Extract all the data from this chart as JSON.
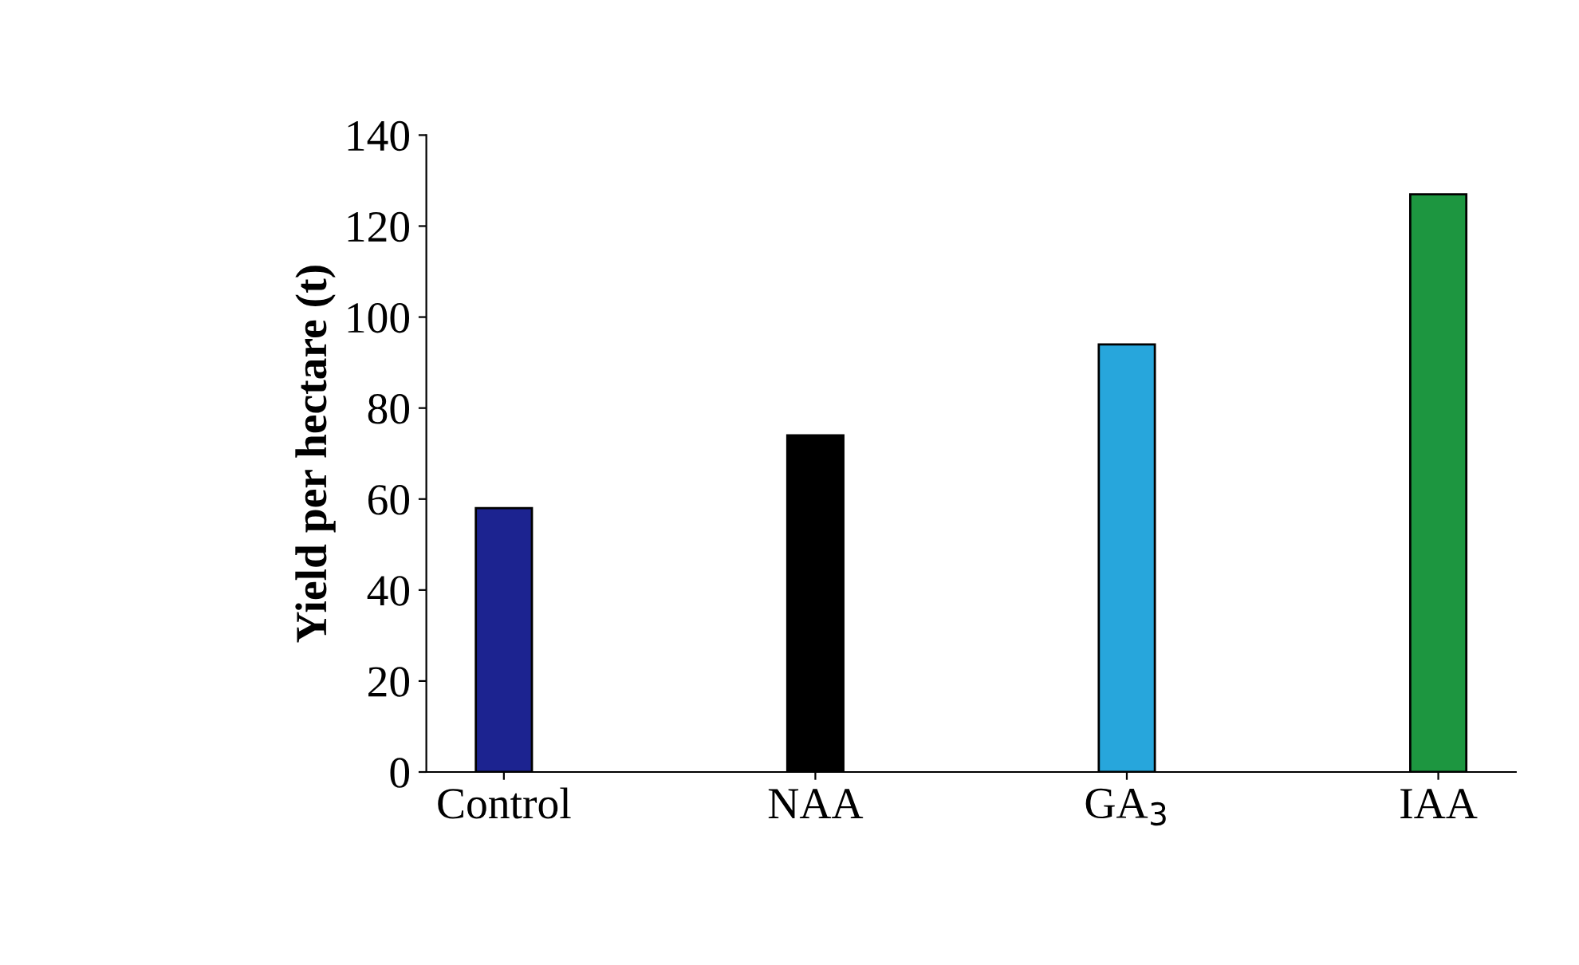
{
  "chart_data": {
    "type": "bar",
    "ylabel": "Yield per hectare (t)",
    "categories": [
      "Control",
      "NAA",
      "GA$_{3}$",
      "IAA"
    ],
    "values": [
      58,
      74,
      94,
      127
    ],
    "colors": [
      "#1c2390",
      "#000000",
      "#27a6dc",
      "#1d9640"
    ],
    "ylim": [
      0,
      140
    ],
    "yticks": [
      0,
      20,
      40,
      60,
      80,
      100,
      120,
      140
    ],
    "grid": false,
    "legend": false
  }
}
